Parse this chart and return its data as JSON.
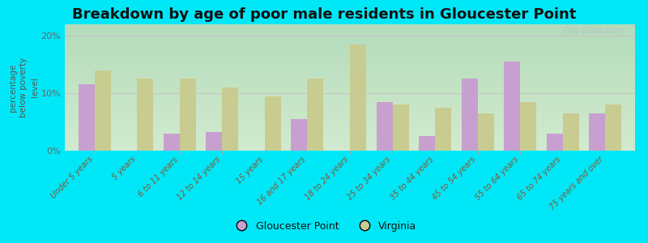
{
  "title": "Breakdown by age of poor male residents in Gloucester Point",
  "ylabel": "percentage\nbelow poverty\nlevel",
  "categories": [
    "Under 5 years",
    "5 years",
    "6 to 11 years",
    "12 to 14 years",
    "15 years",
    "16 and 17 years",
    "18 to 24 years",
    "25 to 34 years",
    "35 to 44 years",
    "45 to 54 years",
    "55 to 64 years",
    "65 to 74 years",
    "75 years and over"
  ],
  "gloucester_point": [
    11.5,
    0,
    3.0,
    3.2,
    0,
    5.5,
    0,
    8.5,
    2.5,
    12.5,
    15.5,
    3.0,
    6.5
  ],
  "virginia": [
    14.0,
    12.5,
    12.5,
    11.0,
    9.5,
    12.5,
    18.5,
    8.0,
    7.5,
    6.5,
    8.5,
    6.5,
    8.0
  ],
  "gloucester_color": "#c8a0d0",
  "virginia_color": "#c8cc90",
  "background_outer": "#00e8f8",
  "background_plot_top": "#e8f0e0",
  "background_plot_bottom": "#d8eecc",
  "title_fontsize": 13,
  "ylabel_fontsize": 7.5,
  "ylim": [
    0,
    22
  ],
  "yticks": [
    0,
    10,
    20
  ],
  "ytick_labels": [
    "0%",
    "10%",
    "20%"
  ],
  "watermark": "City-Data.com",
  "legend_gloucester": "Gloucester Point",
  "legend_virginia": "Virginia"
}
